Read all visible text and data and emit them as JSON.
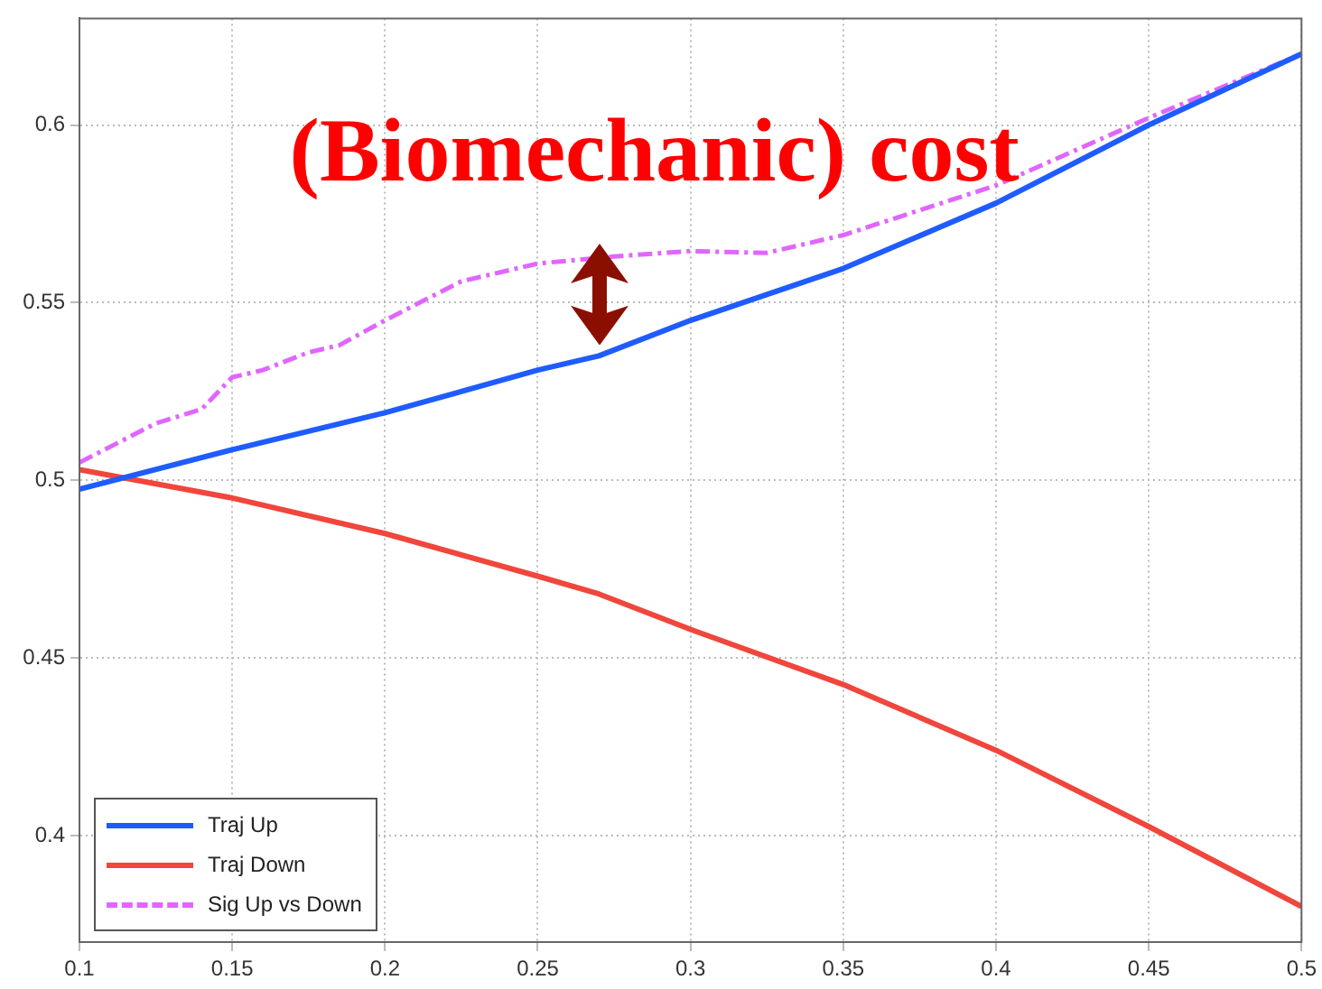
{
  "chart_data": {
    "type": "line",
    "x": [
      0.1,
      0.15,
      0.2,
      0.25,
      0.27,
      0.3,
      0.35,
      0.4,
      0.45,
      0.5
    ],
    "series": [
      {
        "name": "Traj Up",
        "color": "#1f5cff",
        "values": [
          0.4975,
          0.5086,
          0.519,
          0.531,
          0.535,
          0.545,
          0.5596,
          0.578,
          0.6,
          0.62
        ],
        "line_style": "solid"
      },
      {
        "name": "Traj Down",
        "color": "#f0463c",
        "values": [
          0.503,
          0.495,
          0.485,
          0.473,
          0.468,
          0.458,
          0.4425,
          0.424,
          0.4025,
          0.38
        ],
        "line_style": "solid"
      },
      {
        "name": "Sig Up vs Down",
        "color": "#e066ff",
        "line_style": "dashed",
        "x": [
          0.1,
          0.125,
          0.14,
          0.15,
          0.16,
          0.175,
          0.185,
          0.2,
          0.225,
          0.25,
          0.275,
          0.3,
          0.325,
          0.35,
          0.4,
          0.45,
          0.5
        ],
        "values": [
          0.505,
          0.516,
          0.52,
          0.529,
          0.531,
          0.536,
          0.538,
          0.545,
          0.556,
          0.561,
          0.563,
          0.5645,
          0.564,
          0.569,
          0.583,
          0.602,
          0.62
        ]
      }
    ],
    "xlim": [
      0.1,
      0.5
    ],
    "xticks": [
      0.1,
      0.15,
      0.2,
      0.25,
      0.3,
      0.35,
      0.4,
      0.45,
      0.5
    ],
    "ylim": [
      0.37,
      0.63
    ],
    "yticks": [
      0.4,
      0.45,
      0.5,
      0.55,
      0.6
    ],
    "grid": true,
    "legend": "bottom left",
    "marker": "none",
    "annotations": [
      "(Biomechanic) cost"
    ]
  }
}
